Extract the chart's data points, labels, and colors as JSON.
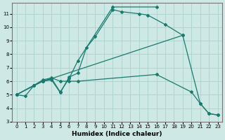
{
  "xlabel": "Humidex (Indice chaleur)",
  "xlim": [
    -0.5,
    23.5
  ],
  "ylim": [
    3,
    11.8
  ],
  "yticks": [
    3,
    4,
    5,
    6,
    7,
    8,
    9,
    10,
    11
  ],
  "xticks": [
    0,
    1,
    2,
    3,
    4,
    5,
    6,
    7,
    8,
    9,
    10,
    11,
    12,
    13,
    14,
    15,
    16,
    17,
    18,
    19,
    20,
    21,
    22,
    23
  ],
  "bg_color": "#cde8e5",
  "grid_color": "#b0d4d0",
  "line_color": "#1a7a6e",
  "series1_x": [
    0,
    1,
    2,
    3,
    4,
    5,
    6,
    7,
    8,
    9,
    11,
    12,
    14,
    15,
    17,
    19
  ],
  "series1_y": [
    5.0,
    4.9,
    5.7,
    6.0,
    6.1,
    5.15,
    6.3,
    6.6,
    8.5,
    9.3,
    11.3,
    11.15,
    11.0,
    10.9,
    10.2,
    9.4
  ],
  "series2_x": [
    0,
    2,
    3,
    4,
    5,
    6,
    7,
    11,
    16
  ],
  "series2_y": [
    5.0,
    5.7,
    6.0,
    6.2,
    5.2,
    6.2,
    7.5,
    11.5,
    11.5
  ],
  "series3_x": [
    0,
    2,
    3,
    4,
    5,
    6,
    7,
    16,
    20,
    21,
    22,
    23
  ],
  "series3_y": [
    5.0,
    5.7,
    6.1,
    6.25,
    6.0,
    6.0,
    6.0,
    6.5,
    5.2,
    4.35,
    3.6,
    3.5
  ],
  "series4_x": [
    0,
    3,
    4,
    19,
    21,
    22,
    23
  ],
  "series4_y": [
    5.0,
    6.0,
    6.2,
    9.4,
    4.35,
    3.6,
    3.5
  ]
}
